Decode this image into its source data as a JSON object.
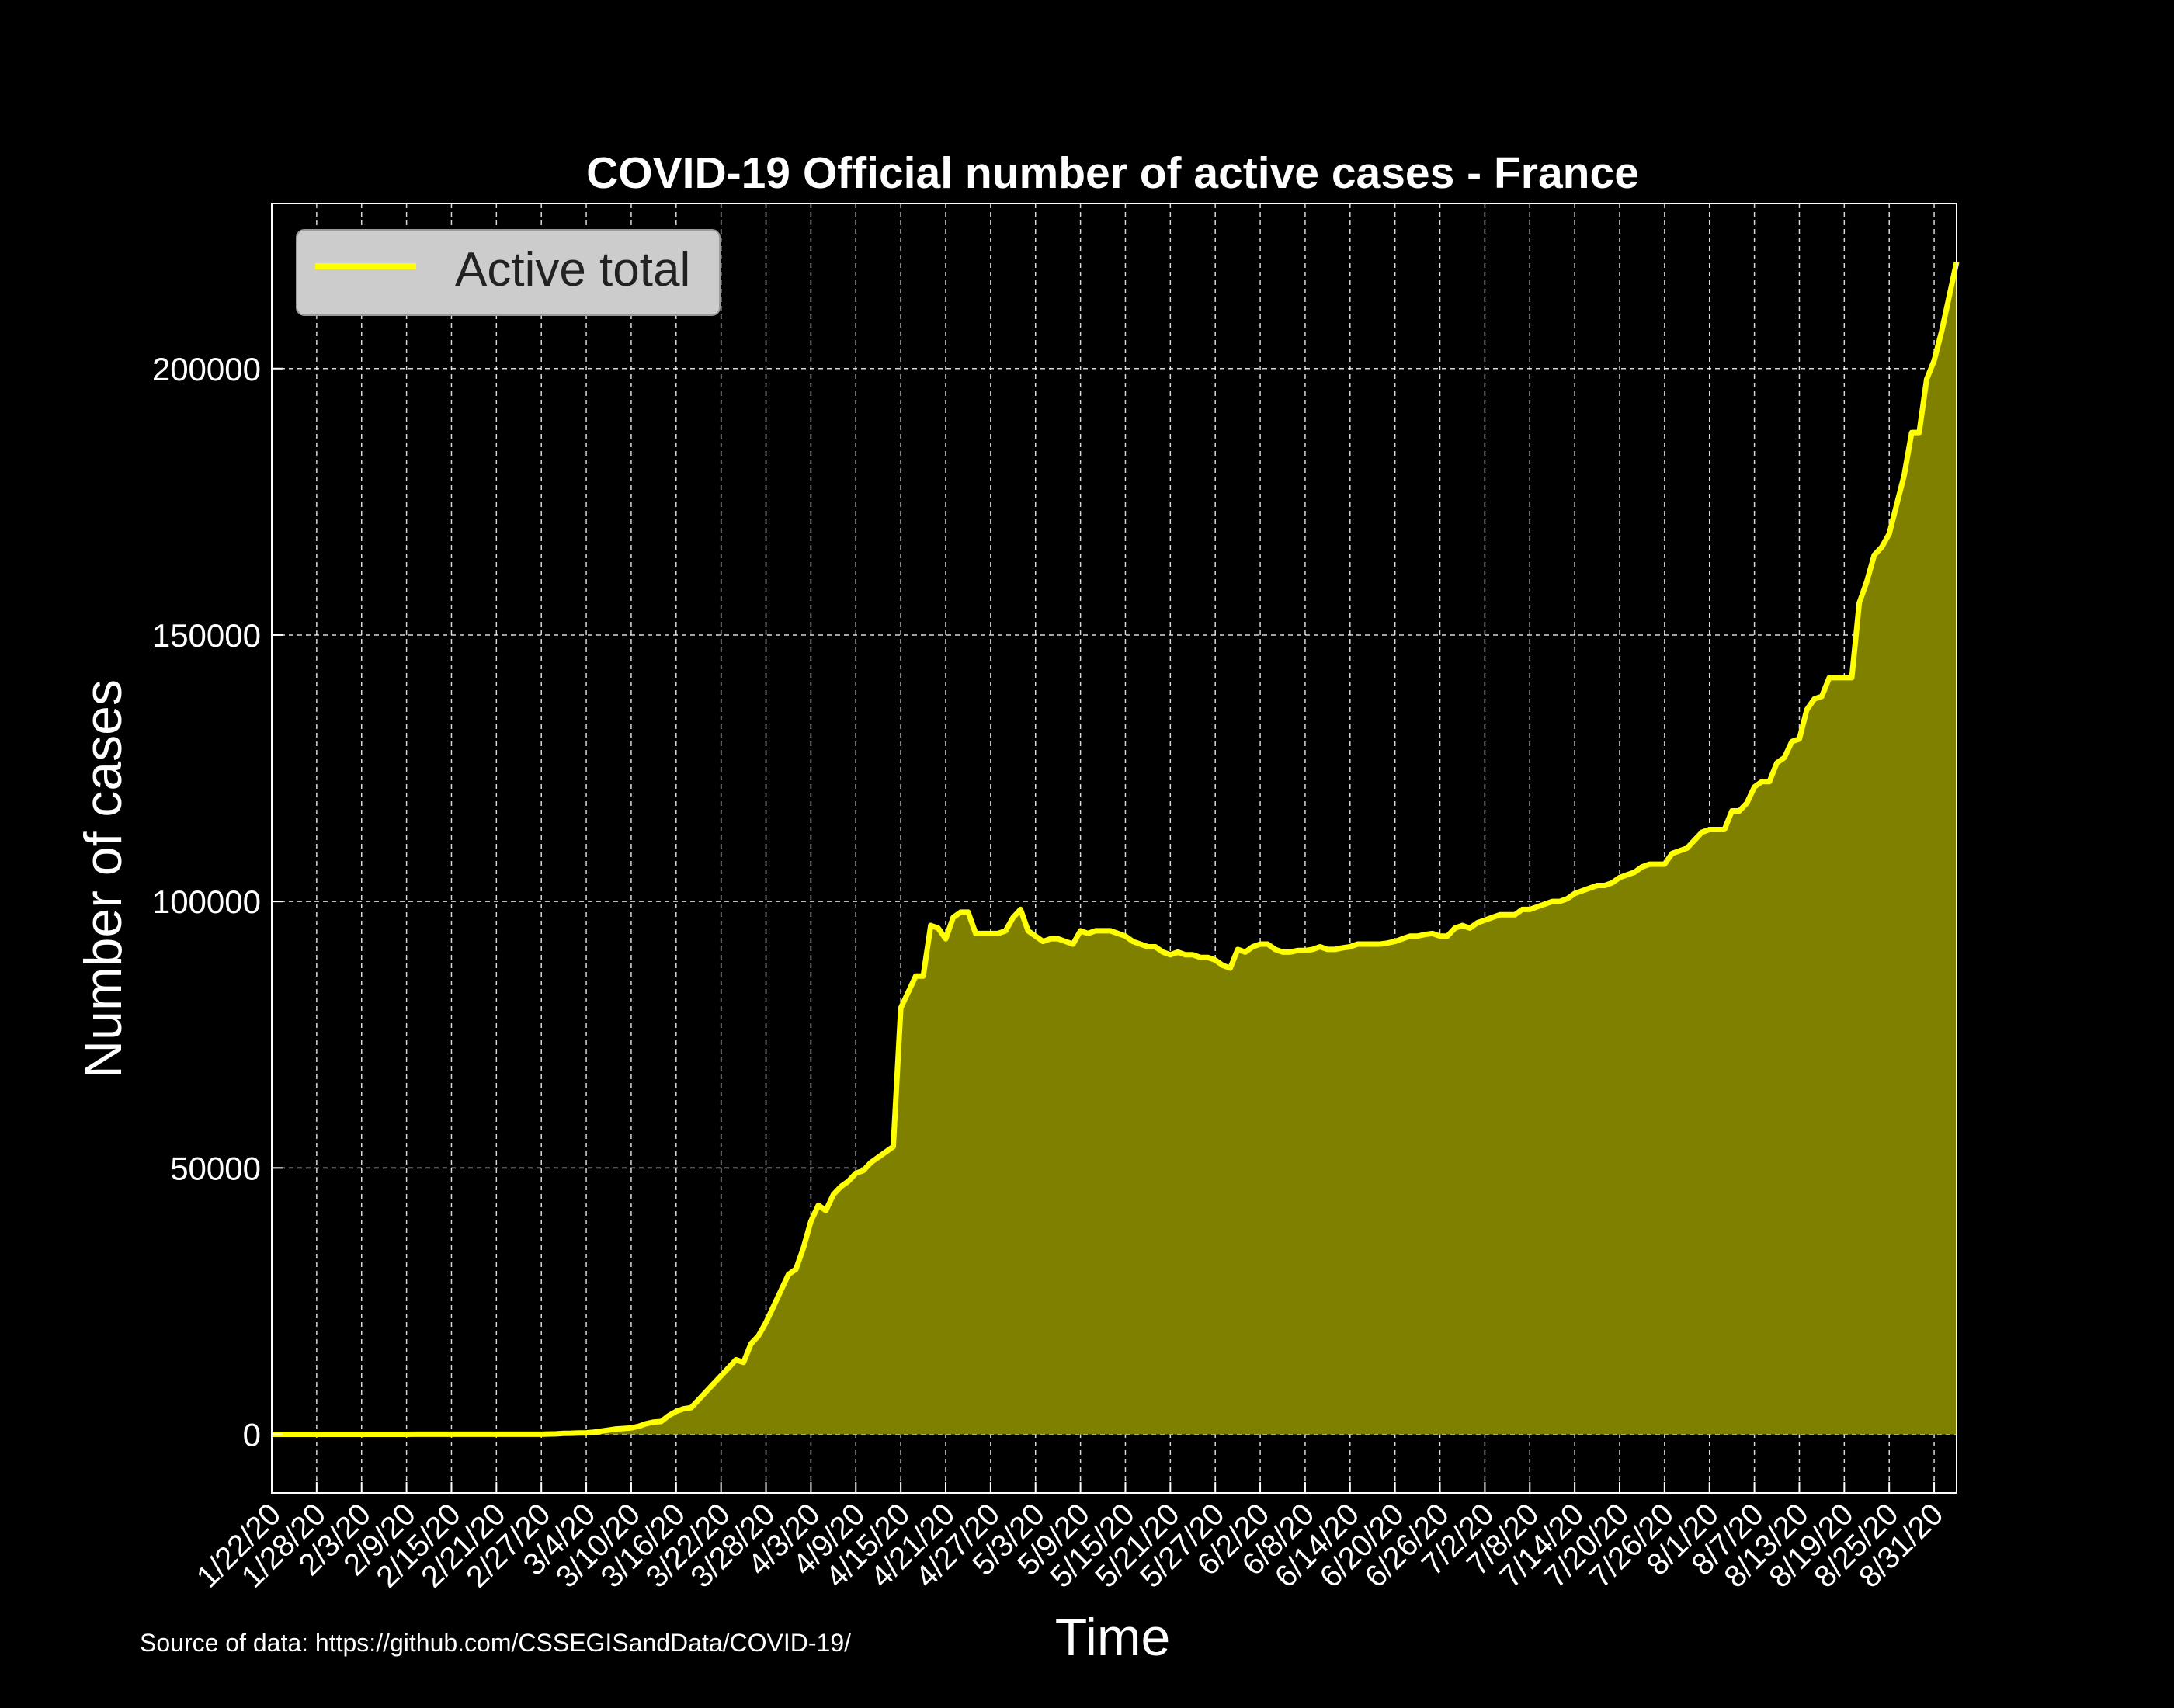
{
  "chart_data": {
    "type": "area",
    "title": "COVID-19 Official number of active cases - France",
    "xlabel": "Time",
    "ylabel": "Number of cases",
    "source": "Source of data: https://github.com/CSSEGISandData/COVID-19/",
    "ylim": [
      -11000,
      231000
    ],
    "yticks": [
      0,
      50000,
      100000,
      150000,
      200000
    ],
    "xticks": [
      "1/22/20",
      "1/28/20",
      "2/3/20",
      "2/9/20",
      "2/15/20",
      "2/21/20",
      "2/27/20",
      "3/4/20",
      "3/10/20",
      "3/16/20",
      "3/22/20",
      "3/28/20",
      "4/3/20",
      "4/9/20",
      "4/15/20",
      "4/21/20",
      "4/27/20",
      "5/3/20",
      "5/9/20",
      "5/15/20",
      "5/21/20",
      "5/27/20",
      "6/2/20",
      "6/8/20",
      "6/14/20",
      "6/20/20",
      "6/26/20",
      "7/2/20",
      "7/8/20",
      "7/14/20",
      "7/20/20",
      "7/26/20",
      "8/1/20",
      "8/7/20",
      "8/13/20",
      "8/19/20",
      "8/25/20",
      "8/31/20"
    ],
    "grid": true,
    "legend_position": "top-left",
    "colors": {
      "line": "#ffff00",
      "fill": "#808000",
      "background": "#000000",
      "text": "#ffffff",
      "legend_bg": "#cccccc",
      "legend_text": "#222222"
    },
    "series": [
      {
        "name": "Active total",
        "start_date": "1/22/20",
        "values": [
          0,
          0,
          3,
          3,
          3,
          3,
          3,
          3,
          3,
          3,
          3,
          6,
          6,
          6,
          6,
          6,
          6,
          6,
          6,
          11,
          11,
          11,
          11,
          11,
          11,
          11,
          11,
          11,
          11,
          11,
          12,
          12,
          12,
          12,
          12,
          12,
          17,
          55,
          96,
          180,
          200,
          250,
          280,
          400,
          600,
          800,
          1000,
          1100,
          1200,
          1500,
          2000,
          2300,
          2400,
          3500,
          4300,
          4800,
          5000,
          6500,
          8000,
          9500,
          11000,
          12500,
          14000,
          13500,
          17000,
          18500,
          21000,
          24000,
          27000,
          30000,
          31000,
          35000,
          40000,
          43000,
          42000,
          45000,
          46500,
          47500,
          49000,
          49500,
          51000,
          52000,
          53000,
          54000,
          80000,
          83000,
          86000,
          86000,
          95500,
          95000,
          93000,
          97000,
          98000,
          98000,
          94000,
          94000,
          94000,
          94000,
          94500,
          97000,
          98500,
          94500,
          93500,
          92500,
          93000,
          93000,
          92500,
          92000,
          94500,
          94000,
          94500,
          94500,
          94500,
          94000,
          93500,
          92500,
          92000,
          91500,
          91500,
          90500,
          90000,
          90500,
          90000,
          90000,
          89500,
          89500,
          89000,
          88000,
          87500,
          91000,
          90500,
          91500,
          92000,
          92000,
          91000,
          90500,
          90500,
          90800,
          90800,
          91000,
          91500,
          91000,
          91000,
          91300,
          91500,
          92000,
          92000,
          92000,
          92000,
          92200,
          92500,
          93000,
          93500,
          93500,
          93800,
          94000,
          93500,
          93500,
          95000,
          95500,
          95000,
          96000,
          96500,
          97000,
          97500,
          97500,
          97500,
          98500,
          98500,
          99000,
          99500,
          100000,
          100000,
          100500,
          101500,
          102000,
          102500,
          103000,
          103000,
          103500,
          104500,
          105000,
          105500,
          106500,
          107000,
          107000,
          107000,
          109000,
          109500,
          110000,
          111500,
          113000,
          113500,
          113500,
          113500,
          117000,
          117000,
          118500,
          121500,
          122500,
          122500,
          126000,
          127000,
          130000,
          130500,
          136000,
          138000,
          138500,
          142000,
          142000,
          142000,
          142000,
          156000,
          160000,
          165000,
          166500,
          169000,
          174500,
          180000,
          188000,
          188000,
          198000,
          201500,
          207000,
          213500,
          220000
        ]
      }
    ]
  }
}
